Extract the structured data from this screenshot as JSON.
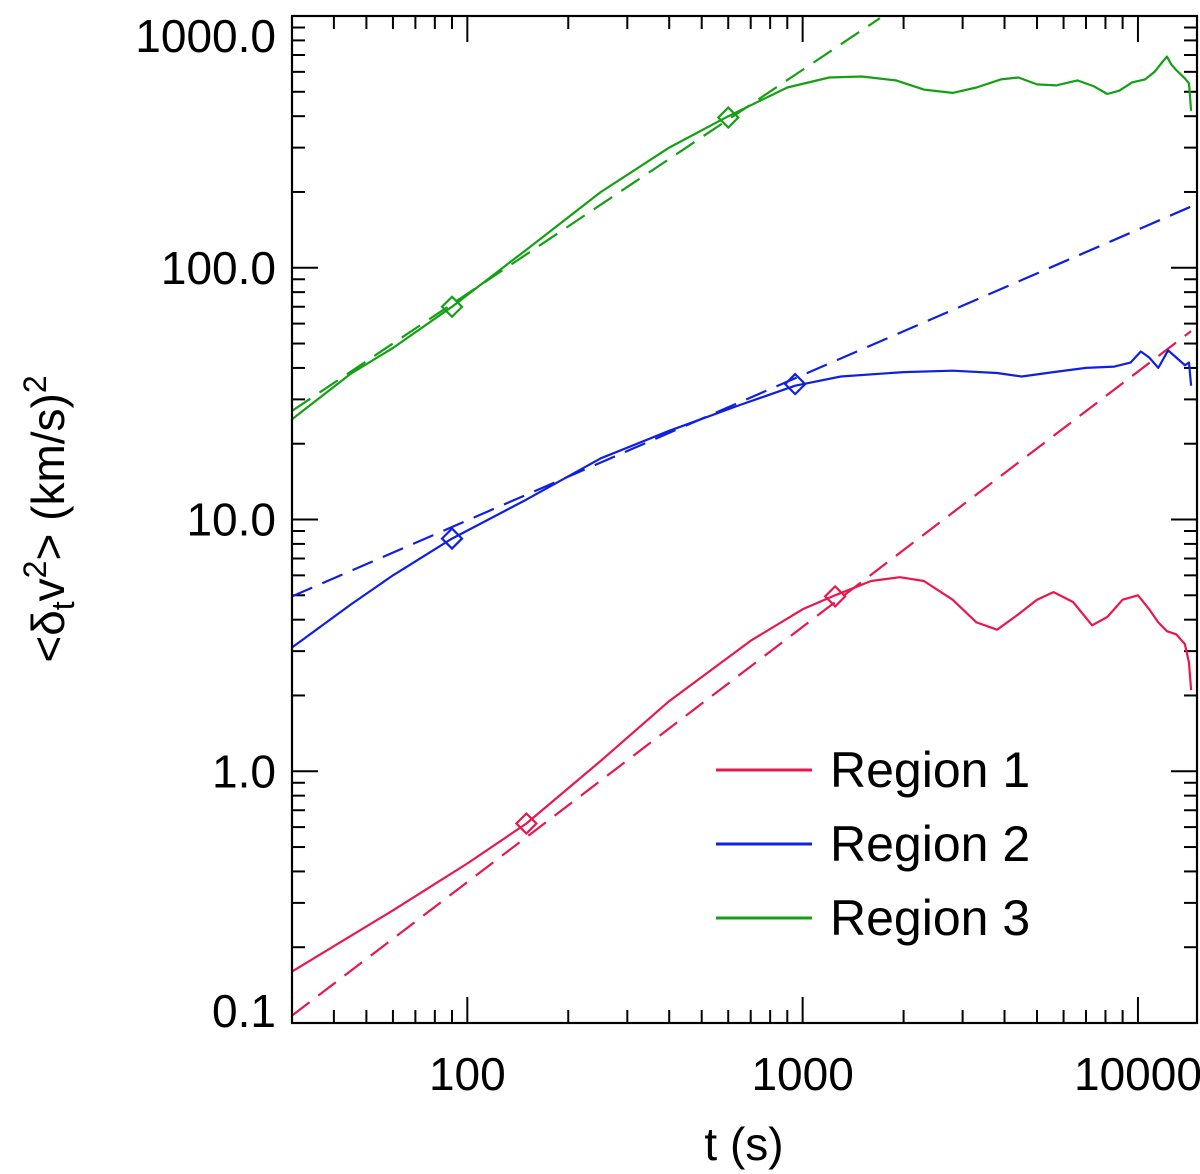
{
  "chart_data": {
    "type": "line",
    "title": "",
    "xlabel": "t (s)",
    "ylabel_parts": {
      "open": "<δ",
      "sub": "t",
      "base": "v",
      "sup": "2",
      "close": "> (km/s)",
      "unit_sup": "2"
    },
    "xscale": "log",
    "yscale": "log",
    "xlim": [
      30,
      15000
    ],
    "ylim": [
      0.1,
      1000
    ],
    "x_ticks": [
      {
        "value": 100,
        "label": "100"
      },
      {
        "value": 1000,
        "label": "1000"
      },
      {
        "value": 10000,
        "label": "10000"
      }
    ],
    "y_ticks": [
      {
        "value": 0.1,
        "label": "0.1"
      },
      {
        "value": 1,
        "label": "1.0"
      },
      {
        "value": 10,
        "label": "10.0"
      },
      {
        "value": 100,
        "label": "100.0"
      },
      {
        "value": 1000,
        "label": "1000.0"
      }
    ],
    "legend_position": "bottom-right",
    "series": [
      {
        "name": "Region 1",
        "color": "#e8174e",
        "x": [
          30,
          60,
          100,
          150,
          250,
          400,
          700,
          1000,
          1250,
          1600,
          1950,
          2300,
          2800,
          3300,
          3800,
          4400,
          5000,
          5600,
          6400,
          7300,
          8100,
          9000,
          10000,
          10800,
          11500,
          12200,
          13000,
          13800,
          14200,
          14400
        ],
        "y": [
          0.16,
          0.28,
          0.43,
          0.62,
          1.1,
          1.9,
          3.3,
          4.4,
          5.0,
          5.7,
          5.9,
          5.7,
          4.8,
          3.9,
          3.65,
          4.2,
          4.8,
          5.15,
          4.7,
          3.8,
          4.1,
          4.8,
          5.0,
          4.4,
          3.9,
          3.6,
          3.5,
          3.2,
          2.7,
          2.1
        ],
        "fit": {
          "x": [
            30,
            14400
          ],
          "y": [
            0.107,
            56
          ]
        },
        "marker_points": [
          {
            "x": 150,
            "y": 0.62
          },
          {
            "x": 1250,
            "y": 4.95
          }
        ]
      },
      {
        "name": "Region 2",
        "color": "#1020e0",
        "x": [
          30,
          45,
          60,
          90,
          150,
          250,
          400,
          650,
          950,
          1300,
          2000,
          2800,
          3800,
          4500,
          5600,
          7000,
          8500,
          9500,
          10200,
          10800,
          11500,
          12300,
          13000,
          13800,
          14200,
          14400
        ],
        "y": [
          3.1,
          4.6,
          6.0,
          8.4,
          12.0,
          17.5,
          22.5,
          28.5,
          34.0,
          37.0,
          38.5,
          39.0,
          38.2,
          37.0,
          38.5,
          40.0,
          40.5,
          42.0,
          46.5,
          44.0,
          40.0,
          47.0,
          44.0,
          41.0,
          42.0,
          34.0
        ],
        "fit": {
          "x": [
            30,
            14400
          ],
          "y": [
            4.95,
            175
          ]
        },
        "marker_points": [
          {
            "x": 90,
            "y": 8.4
          },
          {
            "x": 950,
            "y": 34.5
          }
        ]
      },
      {
        "name": "Region 3",
        "color": "#14a014",
        "x": [
          30,
          45,
          60,
          90,
          150,
          250,
          400,
          600,
          900,
          1200,
          1500,
          1900,
          2300,
          2800,
          3300,
          3900,
          4400,
          5000,
          5700,
          6600,
          7400,
          8100,
          8800,
          9600,
          10500,
          11200,
          11800,
          12200,
          12600,
          13000,
          13800,
          14200,
          14400
        ],
        "y": [
          25,
          38,
          48,
          70,
          118,
          200,
          300,
          400,
          520,
          570,
          575,
          555,
          510,
          495,
          520,
          560,
          570,
          535,
          530,
          555,
          525,
          490,
          505,
          545,
          560,
          600,
          655,
          690,
          640,
          610,
          565,
          540,
          420
        ],
        "fit": {
          "x": [
            30,
            1700
          ],
          "y": [
            27,
            980
          ]
        },
        "marker_points": [
          {
            "x": 90,
            "y": 70
          },
          {
            "x": 600,
            "y": 395
          }
        ]
      }
    ]
  }
}
